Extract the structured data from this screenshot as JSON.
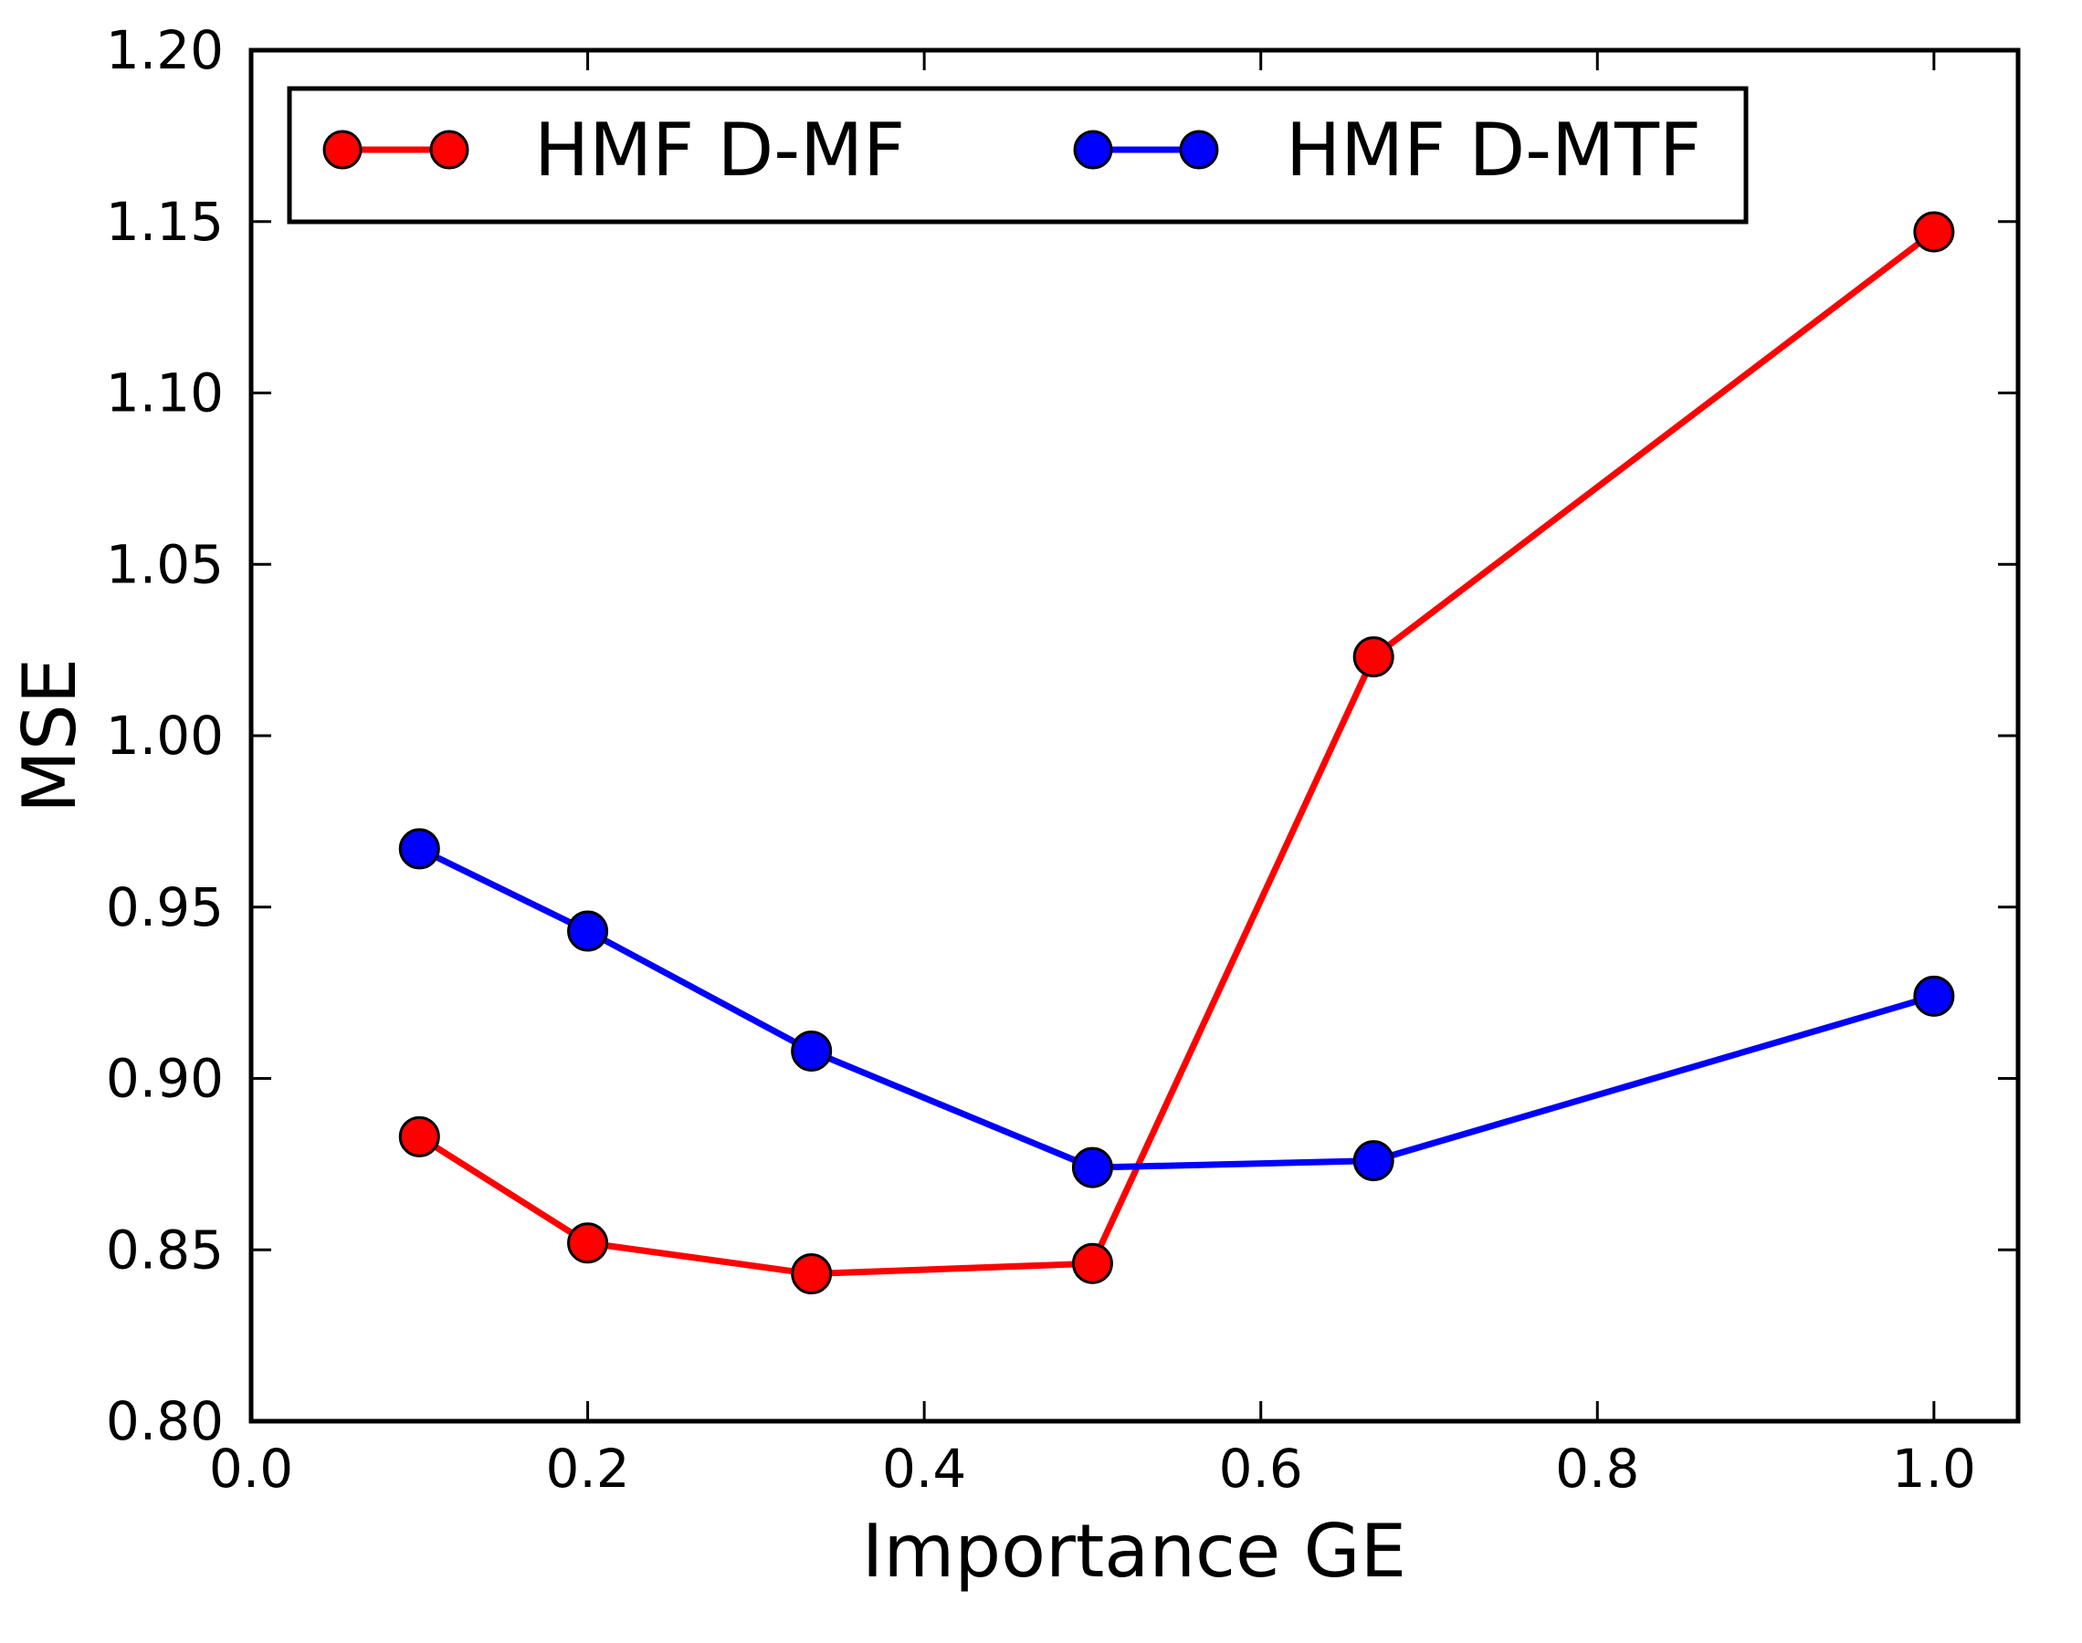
{
  "chart_data": {
    "type": "line",
    "title": "",
    "xlabel": "Importance GE",
    "ylabel": "MSE",
    "xlim": [
      0.0,
      1.05
    ],
    "ylim": [
      0.8,
      1.2
    ],
    "x_ticks": [
      "0.0",
      "0.2",
      "0.4",
      "0.6",
      "0.8",
      "1.0"
    ],
    "y_ticks": [
      "0.80",
      "0.85",
      "0.90",
      "0.95",
      "1.00",
      "1.05",
      "1.10",
      "1.15",
      "1.20"
    ],
    "x": [
      0.1,
      0.2,
      0.333,
      0.5,
      0.667,
      1.0
    ],
    "series": [
      {
        "name": "HMF D-MF",
        "color": "#ff0000",
        "values": [
          0.883,
          0.852,
          0.843,
          0.846,
          1.023,
          1.147
        ]
      },
      {
        "name": "HMF D-MTF",
        "color": "#0000ff",
        "values": [
          0.967,
          0.943,
          0.908,
          0.874,
          0.876,
          0.924
        ]
      }
    ],
    "legend": "top, two columns",
    "grid": false
  }
}
